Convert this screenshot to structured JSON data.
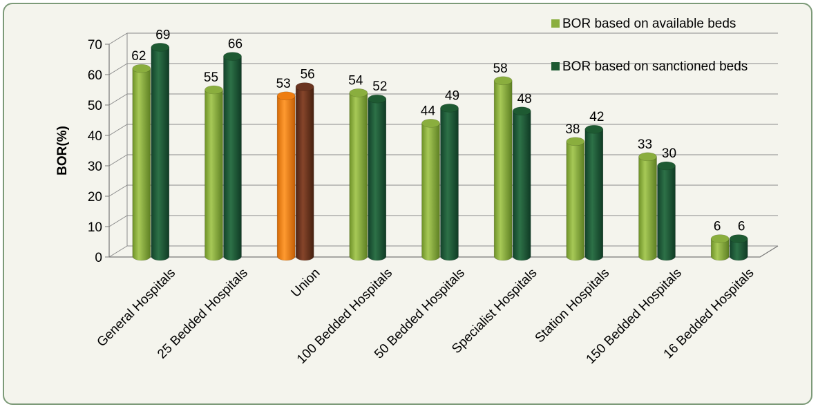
{
  "chart_data": {
    "type": "bar",
    "ylabel": "BOR(%)",
    "ylim": [
      0,
      70
    ],
    "yticks": [
      0,
      10,
      20,
      30,
      40,
      50,
      60,
      70
    ],
    "grid": true,
    "legend_position": "top-right",
    "categories": [
      "General Hospitals",
      "25 Bedded Hospitals",
      "Union",
      "100 Bedded Hospitals",
      "50 Bedded Hospitals",
      "Specialist Hospitals",
      "Station Hospitals",
      "150 Bedded Hospitals",
      "16 Bedded Hospitals"
    ],
    "series": [
      {
        "name": "BOR based on available beds",
        "color": "#8aae3e",
        "values": [
          62,
          55,
          53,
          54,
          44,
          58,
          38,
          33,
          6
        ]
      },
      {
        "name": "BOR based on sanctioned beds",
        "color": "#1e5a32",
        "values": [
          69,
          66,
          56,
          52,
          49,
          48,
          42,
          30,
          6
        ]
      }
    ],
    "highlight": {
      "category": "Union",
      "colors": [
        "#ee7d10",
        "#6a3420"
      ]
    }
  }
}
